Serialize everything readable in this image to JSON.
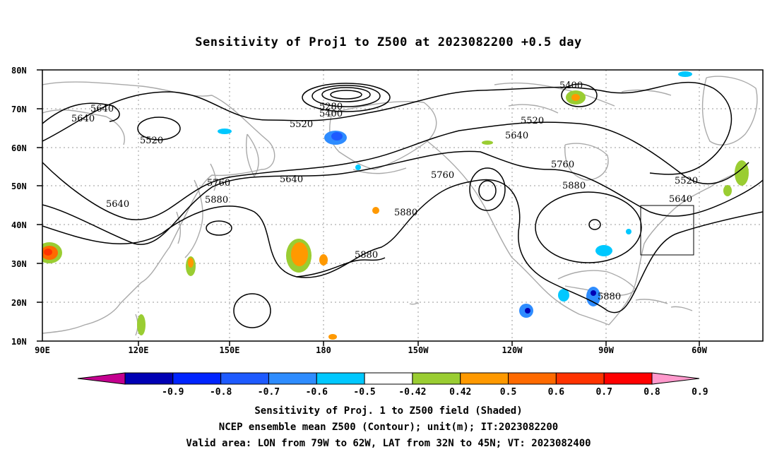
{
  "title": "Sensitivity of Proj1 to Z500 at 2023082200 +0.5 day",
  "map": {
    "lat_ticks": [
      "80N",
      "70N",
      "60N",
      "50N",
      "40N",
      "30N",
      "20N",
      "10N"
    ],
    "lon_ticks": [
      "90E",
      "120E",
      "150E",
      "180",
      "150W",
      "120W",
      "90W",
      "60W"
    ],
    "contour_labels": [
      "5280",
      "5400",
      "5520",
      "5640",
      "5760",
      "5880"
    ],
    "valid_box": {
      "lon_from": "79W",
      "lon_to": "62W",
      "lat_from": "32N",
      "lat_to": "45N"
    },
    "colors": {
      "contour": "#000000",
      "coastline": "#a9a9a9",
      "grid": "#9a9a9a",
      "background": "#ffffff"
    }
  },
  "colorbar": {
    "labels": [
      "-0.9",
      "-0.8",
      "-0.7",
      "-0.6",
      "-0.5",
      "-0.42",
      "0.42",
      "0.5",
      "0.6",
      "0.7",
      "0.8",
      "0.9"
    ],
    "colors": [
      "#c4008f",
      "#0000b4",
      "#0024ff",
      "#1e5aff",
      "#2e8cff",
      "#00c8ff",
      "#ffffff",
      "#9acd32",
      "#ff9900",
      "#ff6a00",
      "#ff3300",
      "#ff0000",
      "#ff99cc"
    ]
  },
  "captions": [
    "Sensitivity of Proj. 1 to Z500 field (Shaded)",
    "NCEP ensemble mean Z500 (Contour); unit(m); IT:2023082200",
    "Valid area: LON from 79W to 62W, LAT from 32N to 45N; VT: 2023082400"
  ]
}
